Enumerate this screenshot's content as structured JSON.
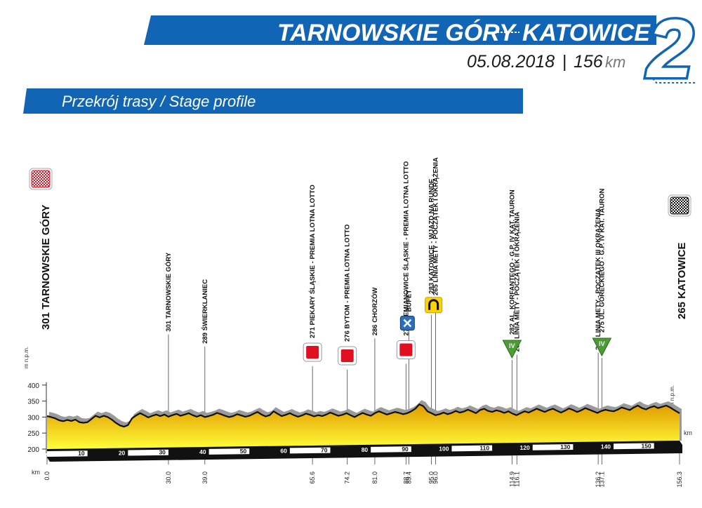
{
  "header": {
    "title_start": "TARNOWSKIE GÓRY",
    "title_end": "KATOWICE",
    "date": "05.08.2018",
    "separator": "|",
    "distance_value": "156",
    "distance_unit": "km",
    "stage_number": "2",
    "subtitle": "Przekrój trasy / Stage profile"
  },
  "colors": {
    "brand_blue": "#1265b4",
    "profile_fill_top": "#e19a00",
    "profile_fill_bottom": "#ffff3a",
    "shadow_gray": "#9a9a9a",
    "red_marker": "#e01020",
    "green_marker": "#4a9d32",
    "yellow_marker": "#ffd200",
    "feed_blue": "#2a6fbf"
  },
  "icons": {
    "start": "red-checkered-flag-icon",
    "finish": "black-checkered-flag-icon",
    "sprint": "red-square-sprint-icon",
    "kom": "green-triangle-mountain-icon",
    "feed": "feed-zone-cross-icon",
    "lap": "yellow-horseshoe-circuit-icon"
  },
  "chart_data": {
    "type": "area",
    "ylabel": "m n.p.m.",
    "xlabel": "km",
    "yticks": [
      200,
      250,
      300,
      350,
      400
    ],
    "ylim": [
      200,
      400
    ],
    "xlim": [
      0,
      156.3
    ],
    "distance_ticks": [
      10,
      20,
      30,
      40,
      50,
      60,
      70,
      80,
      90,
      100,
      110,
      120,
      130,
      140,
      150
    ],
    "profile": [
      [
        0,
        303
      ],
      [
        1,
        300
      ],
      [
        2,
        296
      ],
      [
        3,
        290
      ],
      [
        4,
        287
      ],
      [
        5,
        291
      ],
      [
        6,
        288
      ],
      [
        7,
        292
      ],
      [
        8,
        284
      ],
      [
        9,
        282
      ],
      [
        10,
        284
      ],
      [
        11,
        294
      ],
      [
        12,
        304
      ],
      [
        13,
        299
      ],
      [
        14,
        304
      ],
      [
        15,
        300
      ],
      [
        16,
        292
      ],
      [
        17,
        282
      ],
      [
        18,
        274
      ],
      [
        19,
        270
      ],
      [
        20,
        275
      ],
      [
        21,
        296
      ],
      [
        22,
        305
      ],
      [
        23,
        312
      ],
      [
        24,
        306
      ],
      [
        25,
        299
      ],
      [
        26,
        304
      ],
      [
        27,
        308
      ],
      [
        28,
        303
      ],
      [
        29,
        308
      ],
      [
        30,
        301
      ],
      [
        31,
        306
      ],
      [
        32,
        310
      ],
      [
        33,
        304
      ],
      [
        34,
        308
      ],
      [
        35,
        312
      ],
      [
        36,
        306
      ],
      [
        37,
        301
      ],
      [
        38,
        306
      ],
      [
        39,
        300
      ],
      [
        40,
        303
      ],
      [
        41,
        307
      ],
      [
        42,
        313
      ],
      [
        43,
        309
      ],
      [
        44,
        304
      ],
      [
        45,
        300
      ],
      [
        46,
        303
      ],
      [
        47,
        309
      ],
      [
        48,
        305
      ],
      [
        49,
        301
      ],
      [
        50,
        304
      ],
      [
        51,
        310
      ],
      [
        52,
        316
      ],
      [
        53,
        308
      ],
      [
        54,
        302
      ],
      [
        55,
        306
      ],
      [
        56,
        318
      ],
      [
        57,
        310
      ],
      [
        58,
        303
      ],
      [
        59,
        307
      ],
      [
        60,
        312
      ],
      [
        61,
        306
      ],
      [
        62,
        301
      ],
      [
        63,
        305
      ],
      [
        64,
        311
      ],
      [
        65,
        307
      ],
      [
        66,
        302
      ],
      [
        67,
        306
      ],
      [
        68,
        303
      ],
      [
        69,
        308
      ],
      [
        70,
        314
      ],
      [
        71,
        309
      ],
      [
        72,
        304
      ],
      [
        73,
        307
      ],
      [
        74,
        312
      ],
      [
        75,
        306
      ],
      [
        76,
        300
      ],
      [
        77,
        307
      ],
      [
        78,
        313
      ],
      [
        79,
        308
      ],
      [
        80,
        304
      ],
      [
        81,
        312
      ],
      [
        82,
        318
      ],
      [
        83,
        313
      ],
      [
        84,
        308
      ],
      [
        85,
        312
      ],
      [
        86,
        316
      ],
      [
        87,
        313
      ],
      [
        88,
        309
      ],
      [
        89,
        312
      ],
      [
        90,
        318
      ],
      [
        91,
        326
      ],
      [
        92,
        340
      ],
      [
        93,
        334
      ],
      [
        94,
        318
      ],
      [
        95,
        312
      ],
      [
        96,
        306
      ],
      [
        97,
        309
      ],
      [
        98,
        314
      ],
      [
        99,
        309
      ],
      [
        100,
        313
      ],
      [
        101,
        319
      ],
      [
        102,
        314
      ],
      [
        103,
        317
      ],
      [
        104,
        323
      ],
      [
        105,
        318
      ],
      [
        106,
        312
      ],
      [
        107,
        322
      ],
      [
        108,
        326
      ],
      [
        109,
        319
      ],
      [
        110,
        316
      ],
      [
        111,
        321
      ],
      [
        112,
        318
      ],
      [
        113,
        313
      ],
      [
        114,
        318
      ],
      [
        115,
        311
      ],
      [
        116,
        306
      ],
      [
        117,
        312
      ],
      [
        118,
        318
      ],
      [
        119,
        314
      ],
      [
        120,
        320
      ],
      [
        121,
        326
      ],
      [
        122,
        321
      ],
      [
        123,
        316
      ],
      [
        124,
        322
      ],
      [
        125,
        326
      ],
      [
        126,
        320
      ],
      [
        127,
        314
      ],
      [
        128,
        320
      ],
      [
        129,
        327
      ],
      [
        130,
        322
      ],
      [
        131,
        316
      ],
      [
        132,
        321
      ],
      [
        133,
        328
      ],
      [
        134,
        323
      ],
      [
        135,
        318
      ],
      [
        136,
        313
      ],
      [
        137,
        319
      ],
      [
        138,
        323
      ],
      [
        139,
        320
      ],
      [
        140,
        318
      ],
      [
        141,
        323
      ],
      [
        142,
        330
      ],
      [
        143,
        326
      ],
      [
        144,
        322
      ],
      [
        145,
        330
      ],
      [
        146,
        336
      ],
      [
        147,
        328
      ],
      [
        148,
        324
      ],
      [
        149,
        330
      ],
      [
        150,
        334
      ],
      [
        151,
        328
      ],
      [
        152,
        332
      ],
      [
        153,
        336
      ],
      [
        154,
        330
      ],
      [
        155,
        322
      ],
      [
        156.3,
        312
      ]
    ],
    "start": {
      "label": "301 TARNOWSKIE GÓRY",
      "km": 0.0,
      "km_label": "0.0"
    },
    "finish": {
      "label": "265 KATOWICE",
      "km": 156.3,
      "km_label": "156.3"
    },
    "points": [
      {
        "km": 30.0,
        "km_label": "30.0",
        "label": "301 TARNOWSKIE GÓRY",
        "icon": "none"
      },
      {
        "km": 39.0,
        "km_label": "39.0",
        "label": "289 ŚWIERKLANIEC",
        "icon": "none"
      },
      {
        "km": 65.6,
        "km_label": "65.6",
        "label": "271 PIEKARY ŚLĄSKIE - PREMIA LOTNA LOTTO",
        "icon": "sprint"
      },
      {
        "km": 74.2,
        "km_label": "74.2",
        "label": "276 BYTOM - PREMIA LOTNA LOTTO",
        "icon": "sprint"
      },
      {
        "km": 81.0,
        "km_label": "81.0",
        "label": "286 CHORZÓW",
        "icon": "none"
      },
      {
        "km": 88.7,
        "km_label": "88.7",
        "label": "274 SIEMIANOWICE ŚLĄSKIE - PREMIA LOTNA LOTTO",
        "icon": "sprint"
      },
      {
        "km": 89.4,
        "km_label": "89.4",
        "label": "BUFET",
        "icon": "feed"
      },
      {
        "km": 95.0,
        "km_label": "95.0",
        "label": "283 KATOWICE - WJAZD NA RUNDĘ",
        "icon": "lap"
      },
      {
        "km": 96.0,
        "km_label": "96.0",
        "label": "265 LINIA METY - POCZĄTEK I OKRĄŻENIA",
        "icon": "none"
      },
      {
        "km": 114.9,
        "km_label": "114.9",
        "label": "282 AL. KORFANTEGO - G.P. IV KAT. TAURON",
        "icon": "kom"
      },
      {
        "km": 116.1,
        "km_label": "116.1",
        "label": "265 LINIA METY - POCZĄTEK II OKRĄŻENIA",
        "icon": "none"
      },
      {
        "km": 136.2,
        "km_label": "136.2",
        "label": "265 LINIA METY - POCZĄTEK III OKRĄŻENIA",
        "icon": "none"
      },
      {
        "km": 137.1,
        "km_label": "137.1",
        "label": "275 UL. GÓRECKIEGO - G.P. IV KAT. TAURON",
        "icon": "kom"
      }
    ],
    "kom_category": "IV",
    "grid": false,
    "legend": "none"
  }
}
